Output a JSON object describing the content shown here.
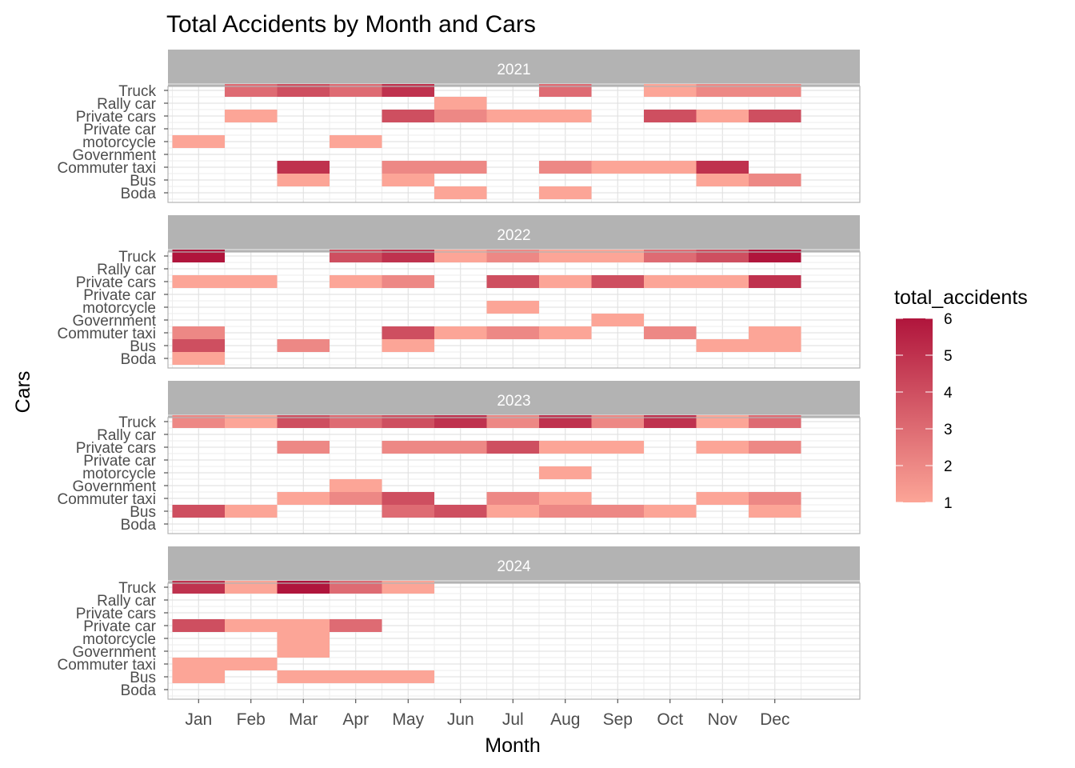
{
  "chart_data": {
    "type": "heatmap",
    "title": "Total Accidents by Month and Cars",
    "xlabel": "Month",
    "ylabel": "Cars",
    "months": [
      "Jan",
      "Feb",
      "Mar",
      "Apr",
      "May",
      "Jun",
      "Jul",
      "Aug",
      "Sep",
      "Oct",
      "Nov",
      "Dec"
    ],
    "cars": [
      "Boda",
      "Bus",
      "Commuter taxi",
      "Government",
      "motorcycle",
      "Private car",
      "Private cars",
      "Rally car",
      "Truck"
    ],
    "legend": {
      "title": "total_accidents",
      "min": 1,
      "max": 6,
      "ticks": [
        1,
        2,
        3,
        4,
        5,
        6
      ],
      "low_color": "#fca597",
      "high_color": "#b0153c"
    },
    "grid": true,
    "facets": [
      {
        "year": "2021",
        "cells": [
          {
            "car": "Truck",
            "month": "Feb",
            "value": 3
          },
          {
            "car": "Truck",
            "month": "Mar",
            "value": 4
          },
          {
            "car": "Truck",
            "month": "Apr",
            "value": 3
          },
          {
            "car": "Truck",
            "month": "May",
            "value": 5
          },
          {
            "car": "Truck",
            "month": "Aug",
            "value": 3
          },
          {
            "car": "Truck",
            "month": "Oct",
            "value": 1
          },
          {
            "car": "Truck",
            "month": "Nov",
            "value": 2
          },
          {
            "car": "Truck",
            "month": "Dec",
            "value": 2
          },
          {
            "car": "Rally car",
            "month": "Jun",
            "value": 1
          },
          {
            "car": "Private cars",
            "month": "Feb",
            "value": 1
          },
          {
            "car": "Private cars",
            "month": "May",
            "value": 4
          },
          {
            "car": "Private cars",
            "month": "Jun",
            "value": 2
          },
          {
            "car": "Private cars",
            "month": "Jul",
            "value": 1
          },
          {
            "car": "Private cars",
            "month": "Aug",
            "value": 1
          },
          {
            "car": "Private cars",
            "month": "Oct",
            "value": 4
          },
          {
            "car": "Private cars",
            "month": "Nov",
            "value": 1
          },
          {
            "car": "Private cars",
            "month": "Dec",
            "value": 4
          },
          {
            "car": "motorcycle",
            "month": "Jan",
            "value": 1
          },
          {
            "car": "motorcycle",
            "month": "Apr",
            "value": 1
          },
          {
            "car": "Commuter taxi",
            "month": "Mar",
            "value": 5
          },
          {
            "car": "Commuter taxi",
            "month": "May",
            "value": 2
          },
          {
            "car": "Commuter taxi",
            "month": "Jun",
            "value": 2
          },
          {
            "car": "Commuter taxi",
            "month": "Aug",
            "value": 2
          },
          {
            "car": "Commuter taxi",
            "month": "Sep",
            "value": 1
          },
          {
            "car": "Commuter taxi",
            "month": "Oct",
            "value": 1
          },
          {
            "car": "Commuter taxi",
            "month": "Nov",
            "value": 5
          },
          {
            "car": "Bus",
            "month": "Mar",
            "value": 1
          },
          {
            "car": "Bus",
            "month": "May",
            "value": 1
          },
          {
            "car": "Bus",
            "month": "Nov",
            "value": 1
          },
          {
            "car": "Bus",
            "month": "Dec",
            "value": 2
          },
          {
            "car": "Boda",
            "month": "Jun",
            "value": 1
          },
          {
            "car": "Boda",
            "month": "Aug",
            "value": 1
          }
        ]
      },
      {
        "year": "2022",
        "cells": [
          {
            "car": "Truck",
            "month": "Jan",
            "value": 6
          },
          {
            "car": "Truck",
            "month": "Apr",
            "value": 4
          },
          {
            "car": "Truck",
            "month": "May",
            "value": 5
          },
          {
            "car": "Truck",
            "month": "Jun",
            "value": 1
          },
          {
            "car": "Truck",
            "month": "Jul",
            "value": 2
          },
          {
            "car": "Truck",
            "month": "Aug",
            "value": 1
          },
          {
            "car": "Truck",
            "month": "Sep",
            "value": 1
          },
          {
            "car": "Truck",
            "month": "Oct",
            "value": 3
          },
          {
            "car": "Truck",
            "month": "Nov",
            "value": 4
          },
          {
            "car": "Truck",
            "month": "Dec",
            "value": 6
          },
          {
            "car": "Private cars",
            "month": "Jan",
            "value": 1
          },
          {
            "car": "Private cars",
            "month": "Feb",
            "value": 1
          },
          {
            "car": "Private cars",
            "month": "Apr",
            "value": 1
          },
          {
            "car": "Private cars",
            "month": "May",
            "value": 2
          },
          {
            "car": "Private cars",
            "month": "Jul",
            "value": 4
          },
          {
            "car": "Private cars",
            "month": "Aug",
            "value": 1
          },
          {
            "car": "Private cars",
            "month": "Sep",
            "value": 4
          },
          {
            "car": "Private cars",
            "month": "Oct",
            "value": 1
          },
          {
            "car": "Private cars",
            "month": "Nov",
            "value": 1
          },
          {
            "car": "Private cars",
            "month": "Dec",
            "value": 5
          },
          {
            "car": "motorcycle",
            "month": "Jul",
            "value": 1
          },
          {
            "car": "Government",
            "month": "Sep",
            "value": 1
          },
          {
            "car": "Commuter taxi",
            "month": "Jan",
            "value": 2
          },
          {
            "car": "Commuter taxi",
            "month": "May",
            "value": 4
          },
          {
            "car": "Commuter taxi",
            "month": "Jun",
            "value": 1
          },
          {
            "car": "Commuter taxi",
            "month": "Jul",
            "value": 2
          },
          {
            "car": "Commuter taxi",
            "month": "Aug",
            "value": 1
          },
          {
            "car": "Commuter taxi",
            "month": "Oct",
            "value": 2
          },
          {
            "car": "Commuter taxi",
            "month": "Dec",
            "value": 1
          },
          {
            "car": "Bus",
            "month": "Jan",
            "value": 4
          },
          {
            "car": "Bus",
            "month": "Mar",
            "value": 2
          },
          {
            "car": "Bus",
            "month": "May",
            "value": 1
          },
          {
            "car": "Bus",
            "month": "Nov",
            "value": 1
          },
          {
            "car": "Bus",
            "month": "Dec",
            "value": 1
          },
          {
            "car": "Boda",
            "month": "Jan",
            "value": 1
          }
        ]
      },
      {
        "year": "2023",
        "cells": [
          {
            "car": "Truck",
            "month": "Jan",
            "value": 2
          },
          {
            "car": "Truck",
            "month": "Feb",
            "value": 1
          },
          {
            "car": "Truck",
            "month": "Mar",
            "value": 4
          },
          {
            "car": "Truck",
            "month": "Apr",
            "value": 3
          },
          {
            "car": "Truck",
            "month": "May",
            "value": 4
          },
          {
            "car": "Truck",
            "month": "Jun",
            "value": 5
          },
          {
            "car": "Truck",
            "month": "Jul",
            "value": 2
          },
          {
            "car": "Truck",
            "month": "Aug",
            "value": 5
          },
          {
            "car": "Truck",
            "month": "Sep",
            "value": 2
          },
          {
            "car": "Truck",
            "month": "Oct",
            "value": 5
          },
          {
            "car": "Truck",
            "month": "Nov",
            "value": 1
          },
          {
            "car": "Truck",
            "month": "Dec",
            "value": 3
          },
          {
            "car": "Private cars",
            "month": "Mar",
            "value": 2
          },
          {
            "car": "Private cars",
            "month": "May",
            "value": 2
          },
          {
            "car": "Private cars",
            "month": "Jun",
            "value": 2
          },
          {
            "car": "Private cars",
            "month": "Jul",
            "value": 4
          },
          {
            "car": "Private cars",
            "month": "Aug",
            "value": 1
          },
          {
            "car": "Private cars",
            "month": "Sep",
            "value": 1
          },
          {
            "car": "Private cars",
            "month": "Nov",
            "value": 1
          },
          {
            "car": "Private cars",
            "month": "Dec",
            "value": 2
          },
          {
            "car": "motorcycle",
            "month": "Aug",
            "value": 1
          },
          {
            "car": "Government",
            "month": "Apr",
            "value": 1
          },
          {
            "car": "Commuter taxi",
            "month": "Mar",
            "value": 1
          },
          {
            "car": "Commuter taxi",
            "month": "Apr",
            "value": 2
          },
          {
            "car": "Commuter taxi",
            "month": "May",
            "value": 4
          },
          {
            "car": "Commuter taxi",
            "month": "Jul",
            "value": 2
          },
          {
            "car": "Commuter taxi",
            "month": "Aug",
            "value": 1
          },
          {
            "car": "Commuter taxi",
            "month": "Nov",
            "value": 1
          },
          {
            "car": "Commuter taxi",
            "month": "Dec",
            "value": 2
          },
          {
            "car": "Bus",
            "month": "Jan",
            "value": 4
          },
          {
            "car": "Bus",
            "month": "Feb",
            "value": 1
          },
          {
            "car": "Bus",
            "month": "May",
            "value": 3
          },
          {
            "car": "Bus",
            "month": "Jun",
            "value": 4
          },
          {
            "car": "Bus",
            "month": "Jul",
            "value": 1
          },
          {
            "car": "Bus",
            "month": "Aug",
            "value": 2
          },
          {
            "car": "Bus",
            "month": "Sep",
            "value": 2
          },
          {
            "car": "Bus",
            "month": "Oct",
            "value": 1
          },
          {
            "car": "Bus",
            "month": "Dec",
            "value": 1
          }
        ]
      },
      {
        "year": "2024",
        "cells": [
          {
            "car": "Truck",
            "month": "Jan",
            "value": 5
          },
          {
            "car": "Truck",
            "month": "Feb",
            "value": 1
          },
          {
            "car": "Truck",
            "month": "Mar",
            "value": 6
          },
          {
            "car": "Truck",
            "month": "Apr",
            "value": 3
          },
          {
            "car": "Truck",
            "month": "May",
            "value": 1
          },
          {
            "car": "Private car",
            "month": "Jan",
            "value": 4
          },
          {
            "car": "Private car",
            "month": "Feb",
            "value": 1
          },
          {
            "car": "Private car",
            "month": "Mar",
            "value": 1
          },
          {
            "car": "Private car",
            "month": "Apr",
            "value": 3
          },
          {
            "car": "motorcycle",
            "month": "Mar",
            "value": 1
          },
          {
            "car": "Government",
            "month": "Mar",
            "value": 1
          },
          {
            "car": "Commuter taxi",
            "month": "Jan",
            "value": 1
          },
          {
            "car": "Commuter taxi",
            "month": "Feb",
            "value": 1
          },
          {
            "car": "Bus",
            "month": "Jan",
            "value": 1
          },
          {
            "car": "Bus",
            "month": "Mar",
            "value": 1
          },
          {
            "car": "Bus",
            "month": "Apr",
            "value": 1
          },
          {
            "car": "Bus",
            "month": "May",
            "value": 1
          }
        ]
      }
    ]
  }
}
